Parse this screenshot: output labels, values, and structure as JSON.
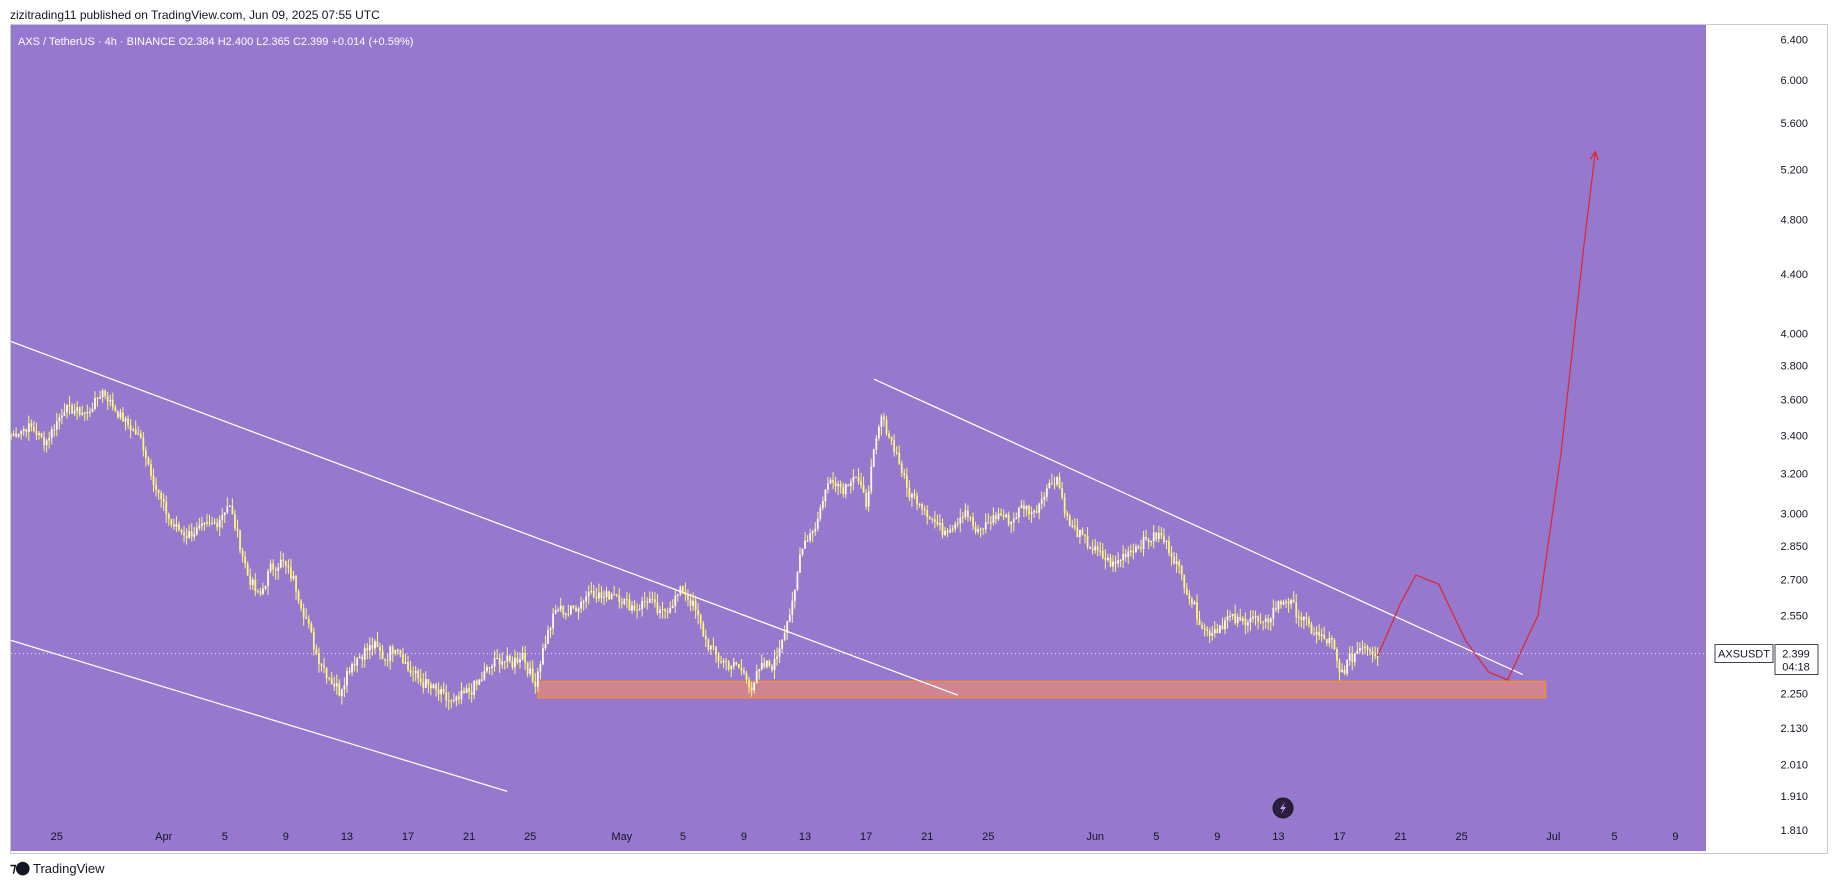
{
  "header": {
    "published": "zizitrading11 published on TradingView.com, Jun 09, 2025 07:55 UTC"
  },
  "legend": {
    "text": "AXS / TetherUS · 4h · BINANCE  O2.384  H2.400  L2.365  C2.399  +0.014 (+0.59%)"
  },
  "footer": {
    "brand": "TradingView"
  },
  "colors": {
    "background": "#9678cf",
    "candle": "#fff67a",
    "trendline": "#ffffff",
    "projection": "#e0262a",
    "zone_fill": "#e48a7c",
    "zone_border": "#ff8c1a"
  },
  "chart_data": {
    "type": "candlestick",
    "symbol": "AXSUSDT",
    "title": "AXS / TetherUS · 4h · BINANCE",
    "interval": "4h",
    "exchange": "BINANCE",
    "ohlc_last": {
      "open": 2.384,
      "high": 2.4,
      "low": 2.365,
      "close": 2.399,
      "change": "+0.014",
      "change_pct": "+0.59%"
    },
    "y_scale": "log",
    "ylim": [
      1.75,
      6.55
    ],
    "y_ticks": [
      "6.400",
      "6.000",
      "5.600",
      "5.200",
      "4.800",
      "4.400",
      "4.000",
      "3.800",
      "3.600",
      "3.400",
      "3.200",
      "3.000",
      "2.850",
      "2.700",
      "2.550",
      "2.400",
      "2.250",
      "2.130",
      "2.010",
      "1.910",
      "1.810"
    ],
    "x_ticks": [
      "25",
      "Apr",
      "5",
      "9",
      "13",
      "17",
      "21",
      "25",
      "May",
      "5",
      "9",
      "13",
      "17",
      "21",
      "25",
      "Jun",
      "5",
      "9",
      "13",
      "17",
      "21",
      "25",
      "Jul",
      "5",
      "9"
    ],
    "x_tick_dates": [
      "2025-03-25",
      "2025-04-01",
      "2025-04-05",
      "2025-04-09",
      "2025-04-13",
      "2025-04-17",
      "2025-04-21",
      "2025-04-25",
      "2025-05-01",
      "2025-05-05",
      "2025-05-09",
      "2025-05-13",
      "2025-05-17",
      "2025-05-21",
      "2025-05-25",
      "2025-06-01",
      "2025-06-05",
      "2025-06-09",
      "2025-06-13",
      "2025-06-17",
      "2025-06-21",
      "2025-06-25",
      "2025-07-01",
      "2025-07-05",
      "2025-07-09"
    ],
    "xlim": [
      "2025-03-22T00:00",
      "2025-07-11T00:00"
    ],
    "last_price_label": "2.399",
    "countdown": "04:18",
    "series": [
      {
        "name": "AXSUSDT",
        "close_path": [
          {
            "x": "2025-03-22T00:00",
            "y": 3.4
          },
          {
            "x": "2025-03-23T06:00",
            "y": 3.45
          },
          {
            "x": "2025-03-24T06:00",
            "y": 3.36
          },
          {
            "x": "2025-03-25T12:00",
            "y": 3.55
          },
          {
            "x": "2025-03-27T00:00",
            "y": 3.52
          },
          {
            "x": "2025-03-28T00:00",
            "y": 3.65
          },
          {
            "x": "2025-03-29T00:00",
            "y": 3.52
          },
          {
            "x": "2025-03-30T12:00",
            "y": 3.38
          },
          {
            "x": "2025-03-31T12:00",
            "y": 3.12
          },
          {
            "x": "2025-04-01T12:00",
            "y": 2.95
          },
          {
            "x": "2025-04-02T12:00",
            "y": 2.9
          },
          {
            "x": "2025-04-03T12:00",
            "y": 2.93
          },
          {
            "x": "2025-04-04T12:00",
            "y": 2.96
          },
          {
            "x": "2025-04-05T06:00",
            "y": 3.05
          },
          {
            "x": "2025-04-05T18:00",
            "y": 2.92
          },
          {
            "x": "2025-04-06T12:00",
            "y": 2.72
          },
          {
            "x": "2025-04-07T06:00",
            "y": 2.62
          },
          {
            "x": "2025-04-08T00:00",
            "y": 2.75
          },
          {
            "x": "2025-04-08T18:00",
            "y": 2.78
          },
          {
            "x": "2025-04-09T12:00",
            "y": 2.7
          },
          {
            "x": "2025-04-10T06:00",
            "y": 2.55
          },
          {
            "x": "2025-04-11T00:00",
            "y": 2.4
          },
          {
            "x": "2025-04-11T18:00",
            "y": 2.32
          },
          {
            "x": "2025-04-12T12:00",
            "y": 2.26
          },
          {
            "x": "2025-04-13T06:00",
            "y": 2.36
          },
          {
            "x": "2025-04-14T00:00",
            "y": 2.4
          },
          {
            "x": "2025-04-14T18:00",
            "y": 2.43
          },
          {
            "x": "2025-04-15T12:00",
            "y": 2.38
          },
          {
            "x": "2025-04-16T06:00",
            "y": 2.44
          },
          {
            "x": "2025-04-17T00:00",
            "y": 2.34
          },
          {
            "x": "2025-04-17T18:00",
            "y": 2.3
          },
          {
            "x": "2025-04-18T12:00",
            "y": 2.27
          },
          {
            "x": "2025-04-19T06:00",
            "y": 2.24
          },
          {
            "x": "2025-04-20T00:00",
            "y": 2.21
          },
          {
            "x": "2025-04-20T18:00",
            "y": 2.25
          },
          {
            "x": "2025-04-21T12:00",
            "y": 2.28
          },
          {
            "x": "2025-04-22T06:00",
            "y": 2.34
          },
          {
            "x": "2025-04-23T00:00",
            "y": 2.38
          },
          {
            "x": "2025-04-23T18:00",
            "y": 2.36
          },
          {
            "x": "2025-04-24T12:00",
            "y": 2.4
          },
          {
            "x": "2025-04-25T06:00",
            "y": 2.28
          },
          {
            "x": "2025-04-26T00:00",
            "y": 2.45
          },
          {
            "x": "2025-04-26T18:00",
            "y": 2.58
          },
          {
            "x": "2025-04-27T12:00",
            "y": 2.56
          },
          {
            "x": "2025-04-28T06:00",
            "y": 2.6
          },
          {
            "x": "2025-04-29T00:00",
            "y": 2.66
          },
          {
            "x": "2025-04-29T18:00",
            "y": 2.62
          },
          {
            "x": "2025-04-30T12:00",
            "y": 2.65
          },
          {
            "x": "2025-05-01T06:00",
            "y": 2.6
          },
          {
            "x": "2025-05-02T00:00",
            "y": 2.58
          },
          {
            "x": "2025-05-02T18:00",
            "y": 2.62
          },
          {
            "x": "2025-05-03T12:00",
            "y": 2.55
          },
          {
            "x": "2025-05-04T06:00",
            "y": 2.6
          },
          {
            "x": "2025-05-05T00:00",
            "y": 2.66
          },
          {
            "x": "2025-05-05T18:00",
            "y": 2.58
          },
          {
            "x": "2025-05-06T12:00",
            "y": 2.45
          },
          {
            "x": "2025-05-07T06:00",
            "y": 2.38
          },
          {
            "x": "2025-05-08T00:00",
            "y": 2.36
          },
          {
            "x": "2025-05-08T18:00",
            "y": 2.34
          },
          {
            "x": "2025-05-09T12:00",
            "y": 2.28
          },
          {
            "x": "2025-05-10T06:00",
            "y": 2.35
          },
          {
            "x": "2025-05-11T00:00",
            "y": 2.36
          },
          {
            "x": "2025-05-11T18:00",
            "y": 2.52
          },
          {
            "x": "2025-05-12T06:00",
            "y": 2.6
          },
          {
            "x": "2025-05-12T18:00",
            "y": 2.85
          },
          {
            "x": "2025-05-13T06:00",
            "y": 2.9
          },
          {
            "x": "2025-05-13T18:00",
            "y": 2.95
          },
          {
            "x": "2025-05-14T06:00",
            "y": 3.1
          },
          {
            "x": "2025-05-14T18:00",
            "y": 3.18
          },
          {
            "x": "2025-05-15T12:00",
            "y": 3.12
          },
          {
            "x": "2025-05-16T06:00",
            "y": 3.2
          },
          {
            "x": "2025-05-17T00:00",
            "y": 3.05
          },
          {
            "x": "2025-05-17T12:00",
            "y": 3.3
          },
          {
            "x": "2025-05-18T00:00",
            "y": 3.5
          },
          {
            "x": "2025-05-18T12:00",
            "y": 3.4
          },
          {
            "x": "2025-05-19T00:00",
            "y": 3.3
          },
          {
            "x": "2025-05-19T18:00",
            "y": 3.1
          },
          {
            "x": "2025-05-20T12:00",
            "y": 3.06
          },
          {
            "x": "2025-05-21T06:00",
            "y": 2.98
          },
          {
            "x": "2025-05-22T00:00",
            "y": 2.92
          },
          {
            "x": "2025-05-22T18:00",
            "y": 2.95
          },
          {
            "x": "2025-05-23T12:00",
            "y": 3.02
          },
          {
            "x": "2025-05-24T06:00",
            "y": 2.9
          },
          {
            "x": "2025-05-25T00:00",
            "y": 2.96
          },
          {
            "x": "2025-05-25T18:00",
            "y": 3.0
          },
          {
            "x": "2025-05-26T12:00",
            "y": 2.96
          },
          {
            "x": "2025-05-27T06:00",
            "y": 3.04
          },
          {
            "x": "2025-05-28T00:00",
            "y": 3.0
          },
          {
            "x": "2025-05-28T18:00",
            "y": 3.12
          },
          {
            "x": "2025-05-29T12:00",
            "y": 3.18
          },
          {
            "x": "2025-05-30T06:00",
            "y": 2.95
          },
          {
            "x": "2025-05-31T00:00",
            "y": 2.9
          },
          {
            "x": "2025-05-31T18:00",
            "y": 2.84
          },
          {
            "x": "2025-06-01T12:00",
            "y": 2.8
          },
          {
            "x": "2025-06-02T06:00",
            "y": 2.76
          },
          {
            "x": "2025-06-03T00:00",
            "y": 2.82
          },
          {
            "x": "2025-06-03T18:00",
            "y": 2.85
          },
          {
            "x": "2025-06-04T12:00",
            "y": 2.88
          },
          {
            "x": "2025-06-05T06:00",
            "y": 2.9
          },
          {
            "x": "2025-06-06T00:00",
            "y": 2.82
          },
          {
            "x": "2025-06-06T18:00",
            "y": 2.7
          },
          {
            "x": "2025-06-07T12:00",
            "y": 2.58
          },
          {
            "x": "2025-06-08T06:00",
            "y": 2.48
          },
          {
            "x": "2025-06-09T00:00",
            "y": 2.5
          },
          {
            "x": "2025-06-09T18:00",
            "y": 2.54
          },
          {
            "x": "2025-06-10T12:00",
            "y": 2.52
          },
          {
            "x": "2025-06-11T06:00",
            "y": 2.55
          },
          {
            "x": "2025-06-12T00:00",
            "y": 2.5
          },
          {
            "x": "2025-06-12T18:00",
            "y": 2.58
          },
          {
            "x": "2025-06-13T12:00",
            "y": 2.62
          },
          {
            "x": "2025-06-14T06:00",
            "y": 2.56
          },
          {
            "x": "2025-06-15T00:00",
            "y": 2.5
          },
          {
            "x": "2025-06-15T18:00",
            "y": 2.46
          },
          {
            "x": "2025-06-16T12:00",
            "y": 2.44
          },
          {
            "x": "2025-06-17T00:00",
            "y": 2.32
          },
          {
            "x": "2025-06-17T12:00",
            "y": 2.36
          },
          {
            "x": "2025-06-18T00:00",
            "y": 2.4
          },
          {
            "x": "2025-06-18T12:00",
            "y": 2.44
          },
          {
            "x": "2025-06-19T00:00",
            "y": 2.42
          },
          {
            "x": "2025-06-19T12:00",
            "y": 2.4
          }
        ]
      }
    ],
    "annotations": {
      "trendlines": [
        {
          "from": {
            "x": "2025-03-22T00:00",
            "y": 3.95
          },
          "to": {
            "x": "2025-05-23T00:00",
            "y": 2.245
          }
        },
        {
          "from": {
            "x": "2025-03-22T00:00",
            "y": 2.45
          },
          "to": {
            "x": "2025-04-23T12:00",
            "y": 1.925
          }
        },
        {
          "from": {
            "x": "2025-05-17T12:00",
            "y": 3.72
          },
          "to": {
            "x": "2025-06-29T00:00",
            "y": 2.32
          }
        }
      ],
      "support_zone": {
        "x0": "2025-04-25T12:00",
        "x1": "2025-06-30T12:00",
        "y_low": 2.235,
        "y_high": 2.295
      },
      "projection": [
        {
          "x": "2025-06-19T12:00",
          "y": 2.39
        },
        {
          "x": "2025-06-21T00:00",
          "y": 2.6
        },
        {
          "x": "2025-06-22T00:00",
          "y": 2.72
        },
        {
          "x": "2025-06-23T12:00",
          "y": 2.68
        },
        {
          "x": "2025-06-25T06:00",
          "y": 2.45
        },
        {
          "x": "2025-06-26T18:00",
          "y": 2.33
        },
        {
          "x": "2025-06-28T00:00",
          "y": 2.3
        },
        {
          "x": "2025-06-30T00:00",
          "y": 2.55
        },
        {
          "x": "2025-07-01T12:00",
          "y": 3.3
        },
        {
          "x": "2025-07-03T00:00",
          "y": 4.6
        },
        {
          "x": "2025-07-03T18:00",
          "y": 5.35
        }
      ]
    }
  }
}
